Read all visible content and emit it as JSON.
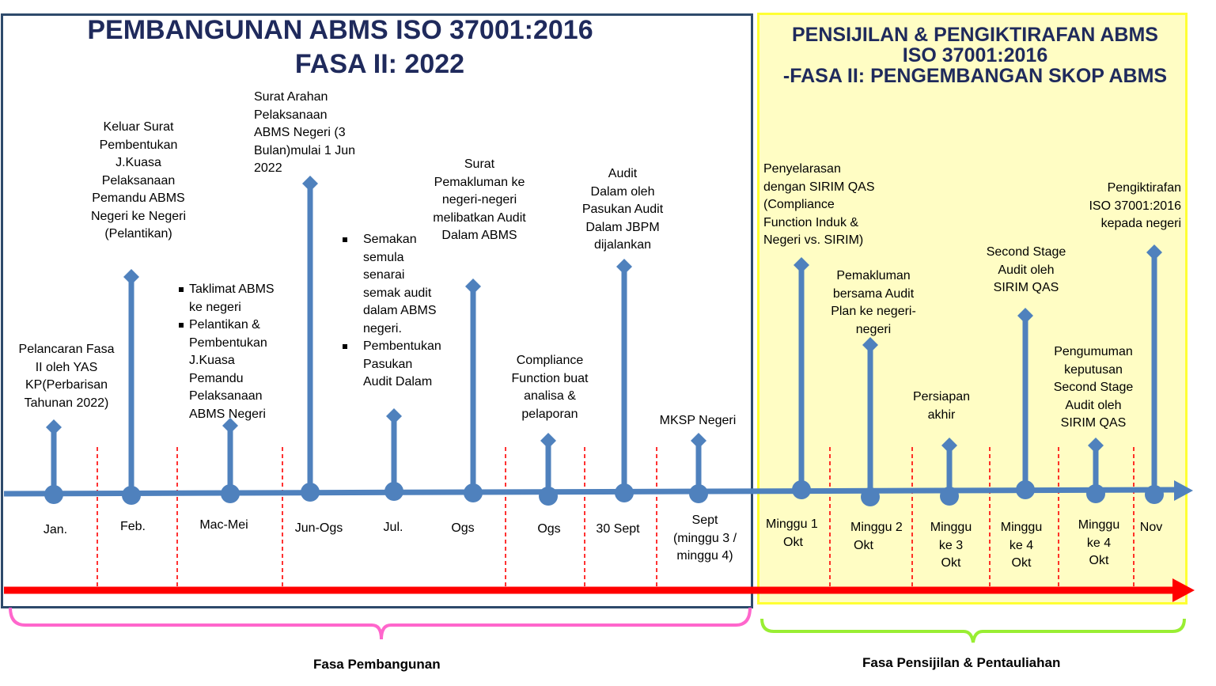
{
  "left_title": {
    "line1": "PEMBANGUNAN ABMS ISO 37001:2016",
    "line2": "FASA II: 2022"
  },
  "right_title": {
    "line1": "PENSIJILAN & PENGIKTIRAFAN ABMS",
    "line2": "ISO 37001:2016",
    "line3": "-FASA II: PENGEMBANGAN SKOP ABMS"
  },
  "colors": {
    "left_frame": "#2e4a6b",
    "right_frame": "#ffff33",
    "right_fill": "#fffdc4",
    "timeline": "#4f81bd",
    "arrow": "#ff0000",
    "dashes": "#ff0000",
    "left_brace": "#ff66cc",
    "right_brace": "#99ee33",
    "title_text": "#1f2a5c"
  },
  "events": [
    {
      "label": [
        "Pelancaran Fasa",
        "II oleh YAS",
        "KP(Perbarisan",
        "Tahunan 2022)"
      ],
      "date": [
        "Jan."
      ]
    },
    {
      "label": [
        "Keluar Surat",
        "Pembentukan",
        "J.Kuasa",
        "Pelaksanaan",
        "Pemandu  ABMS",
        "Negeri ke Negeri",
        "(Pelantikan)"
      ],
      "date": [
        "Feb."
      ]
    },
    {
      "bullets": [
        [
          "Taklimat ABMS",
          "ke negeri"
        ],
        [
          " Pelantikan &",
          "Pembentukan",
          "J.Kuasa",
          "Pemandu",
          "Pelaksanaan",
          "ABMS Negeri"
        ]
      ],
      "date": [
        "Mac-Mei"
      ]
    },
    {
      "label": [
        "Surat Arahan",
        "Pelaksanaan",
        "ABMS Negeri (3",
        "Bulan)mulai 1 Jun",
        "2022"
      ],
      "date": [
        "Jun-Ogs"
      ]
    },
    {
      "bullets": [
        [
          "Semakan",
          "semula",
          "senarai",
          "semak audit",
          "dalam ABMS",
          "negeri."
        ],
        [
          "Pembentukan",
          "Pasukan",
          "Audit Dalam"
        ]
      ],
      "date": [
        "Jul."
      ]
    },
    {
      "label": [
        "Surat",
        "Pemakluman ke",
        "negeri-negeri",
        "melibatkan Audit",
        "Dalam ABMS"
      ],
      "date": [
        "Ogs"
      ]
    },
    {
      "label": [
        "Compliance",
        "Function buat",
        "analisa &",
        "pelaporan"
      ],
      "date": [
        "Ogs"
      ]
    },
    {
      "label": [
        "Audit",
        "Dalam oleh",
        "Pasukan Audit",
        "Dalam JBPM",
        "dijalankan"
      ],
      "date": [
        "30 Sept"
      ]
    },
    {
      "label": [
        "MKSP Negeri"
      ],
      "date": [
        "Sept",
        "(minggu 3 /",
        "minggu 4)"
      ]
    },
    {
      "label": [
        "Penyelarasan",
        "dengan SIRIM QAS",
        "(Compliance",
        "Function Induk &",
        "Negeri vs. SIRIM)"
      ],
      "date": [
        "Minggu 1",
        "Okt"
      ]
    },
    {
      "label": [
        "Pemakluman",
        "bersama Audit",
        "Plan ke negeri-",
        "negeri"
      ],
      "date": [
        "Minggu 2",
        "Okt"
      ]
    },
    {
      "label": [
        "Persiapan",
        "akhir"
      ],
      "date": [
        "Minggu",
        "ke 3",
        "Okt"
      ]
    },
    {
      "label": [
        "Second Stage",
        "Audit  oleh",
        "SIRIM QAS"
      ],
      "date": [
        "Minggu",
        "ke 4",
        "Okt"
      ]
    },
    {
      "label": [
        "Pengumuman",
        "keputusan",
        "Second Stage",
        "Audit  oleh",
        "SIRIM QAS"
      ],
      "date": [
        "Minggu",
        "ke 4",
        "Okt"
      ]
    },
    {
      "label": [
        "Pengiktirafan",
        "ISO 37001:2016",
        "kepada negeri"
      ],
      "date": [
        "Nov"
      ]
    }
  ],
  "footer": {
    "left": "Fasa Pembangunan",
    "right": "Fasa Pensijilan & Pentauliahan"
  }
}
